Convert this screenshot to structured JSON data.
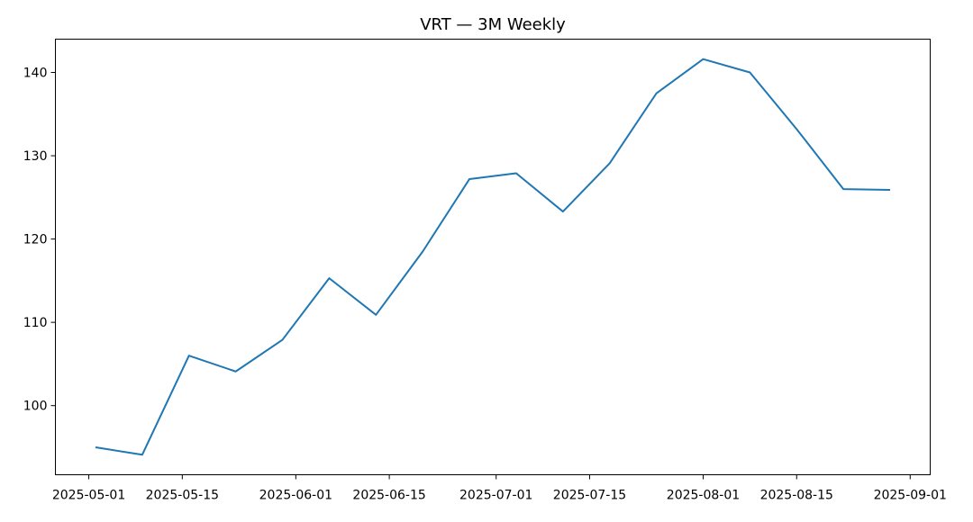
{
  "chart_data": {
    "type": "line",
    "title": "VRT — 3M Weekly",
    "xlabel": "",
    "ylabel": "",
    "x": [
      "2025-05-02",
      "2025-05-09",
      "2025-05-16",
      "2025-05-23",
      "2025-05-30",
      "2025-06-06",
      "2025-06-13",
      "2025-06-20",
      "2025-06-27",
      "2025-07-04",
      "2025-07-11",
      "2025-07-18",
      "2025-07-25",
      "2025-08-01",
      "2025-08-08",
      "2025-08-15",
      "2025-08-22",
      "2025-08-29"
    ],
    "series": [
      {
        "color": "#1f77b4",
        "values": [
          95.0,
          94.1,
          106.0,
          104.1,
          107.9,
          115.3,
          110.9,
          118.5,
          127.2,
          127.9,
          123.3,
          129.1,
          137.5,
          141.6,
          140.0,
          133.2,
          126.0,
          125.9
        ]
      }
    ],
    "xticks": [
      "2025-05-01",
      "2025-05-15",
      "2025-06-01",
      "2025-06-15",
      "2025-07-01",
      "2025-07-15",
      "2025-08-01",
      "2025-08-15",
      "2025-09-01"
    ],
    "yticks": [
      100,
      110,
      120,
      130,
      140
    ],
    "xlim": [
      "2025-04-26",
      "2025-09-04"
    ],
    "ylim": [
      91.7,
      144.0
    ],
    "grid": false,
    "legend": "none"
  }
}
